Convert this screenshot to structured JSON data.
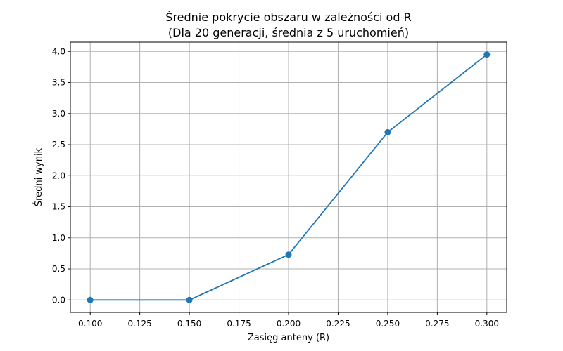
{
  "chart_data": {
    "type": "line",
    "title": "Średnie pokrycie obszaru w zależności od R",
    "subtitle": "(Dla 20 generacji, średnia z 5 uruchomień)",
    "xlabel": "Zasięg anteny (R)",
    "ylabel": "Średni wynik",
    "x": [
      0.1,
      0.15,
      0.2,
      0.25,
      0.3
    ],
    "series": [
      {
        "values": [
          0.0,
          0.0,
          0.73,
          2.7,
          3.95
        ]
      }
    ],
    "x_ticks": [
      "0.100",
      "0.125",
      "0.150",
      "0.175",
      "0.200",
      "0.225",
      "0.250",
      "0.275",
      "0.300"
    ],
    "y_ticks": [
      "0.0",
      "0.5",
      "1.0",
      "1.5",
      "2.0",
      "2.5",
      "3.0",
      "3.5",
      "4.0"
    ],
    "xlim": [
      0.09,
      0.31
    ],
    "ylim": [
      -0.2,
      4.15
    ],
    "grid": true,
    "marker": "circle",
    "color": "#1f77b4"
  }
}
